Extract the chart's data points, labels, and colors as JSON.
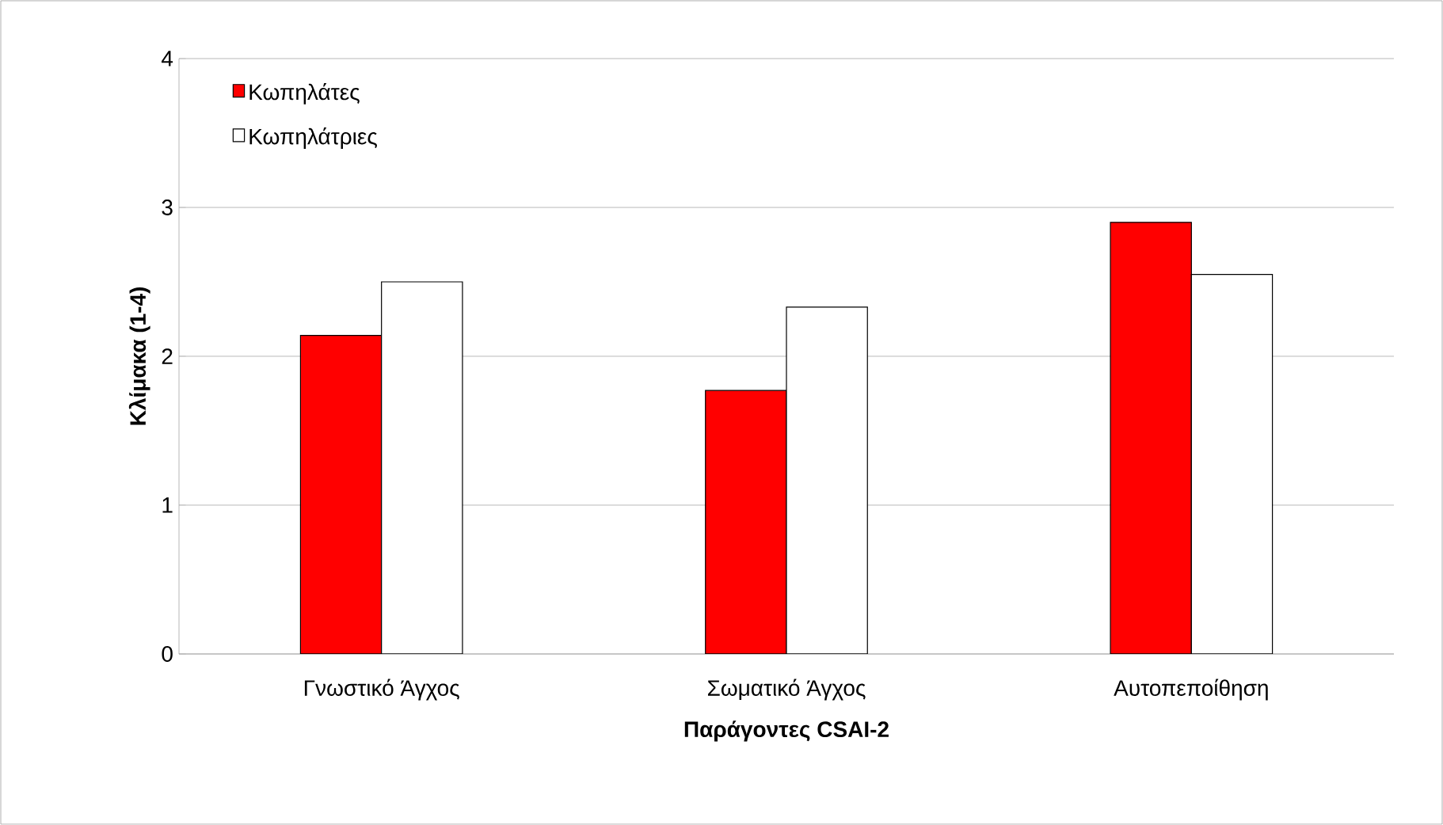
{
  "chart_data": {
    "type": "bar",
    "xlabel": "Παράγοντες CSAI-2",
    "ylabel": "Κλίμακα (1-4)",
    "categories": [
      "Γνωστικό Άγχος",
      "Σωματικό Άγχος",
      "Αυτοπεποίθηση"
    ],
    "series": [
      {
        "name": "Κωπηλάτες",
        "color": "#ff0000",
        "values": [
          2.14,
          1.77,
          2.9
        ]
      },
      {
        "name": "Κωπηλάτριες",
        "color": "#ffffff",
        "values": [
          2.5,
          2.33,
          2.55
        ]
      }
    ],
    "ylim": [
      0,
      4
    ],
    "yticks": [
      0,
      1,
      2,
      3,
      4
    ],
    "grid": "y",
    "legend": "top left"
  }
}
